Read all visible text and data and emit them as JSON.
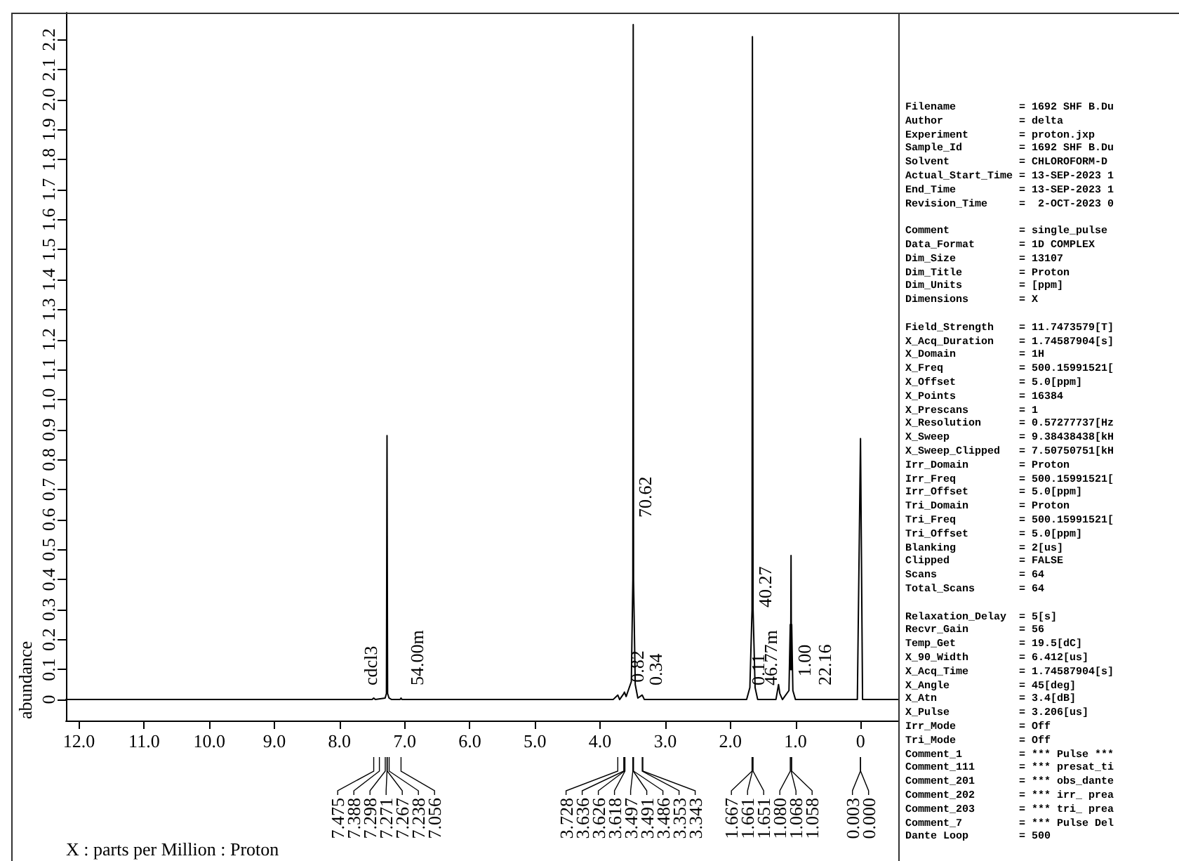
{
  "chart_data": [
    {
      "type": "line",
      "xlabel": "X : parts per Million : Proton",
      "ylabel": "abundance",
      "color": "#000000",
      "x": [
        12.2,
        7.5,
        7.475,
        7.45,
        7.3,
        7.28,
        7.271,
        7.262,
        7.24,
        7.2,
        7.07,
        7.056,
        7.04,
        3.8,
        3.728,
        3.7,
        3.636,
        3.626,
        3.6,
        3.52,
        3.497,
        3.491,
        3.486,
        3.46,
        3.42,
        3.353,
        3.343,
        3.32,
        1.75,
        1.7,
        1.667,
        1.661,
        1.651,
        1.62,
        1.58,
        1.3,
        1.26,
        1.24,
        1.2,
        1.1,
        1.08,
        1.074,
        1.068,
        1.062,
        1.058,
        1.04,
        1.0,
        0.05,
        0.0015,
        -0.03,
        -0.6
      ],
      "values": [
        0,
        0,
        0.005,
        0,
        0.005,
        0.02,
        0.88,
        0.02,
        0.005,
        0,
        0,
        0.005,
        0,
        0,
        0.015,
        0,
        0.02,
        0.025,
        0.01,
        0.06,
        0.4,
        2.25,
        0.4,
        0.05,
        0.005,
        0.015,
        0.015,
        0,
        0,
        0.04,
        0.3,
        2.21,
        0.3,
        0.04,
        0,
        0,
        0.05,
        0.02,
        0,
        0.03,
        0.25,
        0.1,
        0.48,
        0.1,
        0.25,
        0.03,
        0,
        0,
        0.87,
        0,
        0
      ],
      "xlim": [
        12.2,
        -0.6
      ],
      "ylim": [
        -0.07,
        2.29
      ],
      "xticks": [
        {
          "value": 12,
          "label": "12.0"
        },
        {
          "value": 11,
          "label": "11.0"
        },
        {
          "value": 10,
          "label": "10.0"
        },
        {
          "value": 9,
          "label": "9.0"
        },
        {
          "value": 8,
          "label": "8.0"
        },
        {
          "value": 7,
          "label": "7.0"
        },
        {
          "value": 6,
          "label": "6.0"
        },
        {
          "value": 5,
          "label": "5.0"
        },
        {
          "value": 4,
          "label": "4.0"
        },
        {
          "value": 3,
          "label": "3.0"
        },
        {
          "value": 2,
          "label": "2.0"
        },
        {
          "value": 1,
          "label": "1.0"
        },
        0
      ],
      "yticks": [
        0,
        0.1,
        0.2,
        0.3,
        0.4,
        0.5,
        0.6,
        0.7,
        0.8,
        0.9,
        {
          "value": 1,
          "label": "1.0"
        },
        1.1,
        1.2,
        1.3,
        1.4,
        1.5,
        1.6,
        1.7,
        1.8,
        1.9,
        {
          "value": 2,
          "label": "2.0"
        },
        2.1,
        2.2
      ],
      "annotations": [
        {
          "text": "cdcl3",
          "x": 7.7,
          "y": 0
        },
        {
          "text": "54.00m",
          "x": 6.99,
          "y": 0
        },
        {
          "text": "0.82",
          "x": 3.6,
          "y": 0.01
        },
        {
          "text": "70.62",
          "x": 3.4864,
          "y": 0.56
        },
        {
          "text": "0.34",
          "x": 3.32,
          "y": 0
        },
        {
          "text": "0.11",
          "x": 1.75,
          "y": 0
        },
        {
          "text": "40.27",
          "x": 1.6462,
          "y": 0.26
        },
        {
          "text": "46.77m",
          "x": 1.55,
          "y": 0
        },
        {
          "text": "1.00",
          "x": 1.04,
          "y": 0.03
        },
        {
          "text": "22.16",
          "x": 0.73,
          "y": 0
        },
        {
          "text": "7.475",
          "x": 7.475
        },
        {
          "text": "7.388",
          "x": 7.388
        },
        {
          "text": "7.298",
          "x": 7.298
        },
        {
          "text": "7.271",
          "x": 7.271
        },
        {
          "text": "7.267",
          "x": 7.267
        },
        {
          "text": "7.238",
          "x": 7.238
        },
        {
          "text": "7.056",
          "x": 7.056
        },
        {
          "text": "3.728",
          "x": 3.728
        },
        {
          "text": "3.636",
          "x": 3.636
        },
        {
          "text": "3.626",
          "x": 3.626
        },
        {
          "text": "3.618",
          "x": 3.618
        },
        {
          "text": "3.497",
          "x": 3.497
        },
        {
          "text": "3.491",
          "x": 3.491
        },
        {
          "text": "3.486",
          "x": 3.486
        },
        {
          "text": "3.353",
          "x": 3.353
        },
        {
          "text": "3.343",
          "x": 3.343
        },
        {
          "text": "1.667",
          "x": 1.667
        },
        {
          "text": "1.661",
          "x": 1.661
        },
        {
          "text": "1.651",
          "x": 1.651
        },
        {
          "text": "1.080",
          "x": 1.08
        },
        {
          "text": "1.068",
          "x": 1.068
        },
        {
          "text": "1.058",
          "x": 1.058
        },
        {
          "text": "0.003",
          "x": 0.003
        },
        {
          "text": "0.000",
          "x": 0.0
        }
      ]
    },
    {
      "type": "other",
      "annotations": [
        "Filename = 1692 SHF B.Du",
        "Author = delta",
        "Experiment = proton.jxp",
        "Sample_Id = 1692 SHF B.Du",
        "Solvent = CHLOROFORM-D",
        "Actual_Start_Time = 13-SEP-2023 1",
        "End_Time = 13-SEP-2023 1",
        "Revision_Time =  2-OCT-2023 0"
      ]
    },
    {
      "type": "other",
      "annotations": [
        "Comment = single_pulse",
        "Data_Format = 1D COMPLEX",
        "Dim_Size = 13107",
        "Dim_Title = Proton",
        "Dim_Units = [ppm]",
        "Dimensions = X"
      ]
    },
    {
      "type": "other",
      "annotations": [
        "Field_Strength = 11.7473579[T]",
        "X_Acq_Duration = 1.74587904[s]",
        "X_Domain = 1H",
        "X_Freq = 500.15991521[",
        "X_Offset = 5.0[ppm]",
        "X_Points = 16384",
        "X_Prescans = 1",
        "X_Resolution = 0.57277737[Hz",
        "X_Sweep = 9.38438438[kH",
        "X_Sweep_Clipped = 7.50750751[kH",
        "Irr_Domain = Proton",
        "Irr_Freq = 500.15991521[",
        "Irr_Offset = 5.0[ppm]",
        "Tri_Domain = Proton",
        "Tri_Freq = 500.15991521[",
        "Tri_Offset = 5.0[ppm]",
        "Blanking = 2[us]",
        "Clipped = FALSE",
        "Scans = 64",
        "Total_Scans = 64"
      ]
    },
    {
      "type": "other",
      "annotations": [
        "Relaxation_Delay = 5[s]",
        "Recvr_Gain = 56",
        "Temp_Get = 19.5[dC]",
        "X_90_Width = 6.412[us]",
        "X_Acq_Time = 1.74587904[s]",
        "X_Angle = 45[deg]",
        "X_Atn = 3.4[dB]",
        "X_Pulse = 3.206[us]",
        "Irr_Mode = Off",
        "Tri_Mode = Off",
        "Comment_1 = *** Pulse ***",
        "Comment_111 = *** presat_ti",
        "Comment_201 = *** obs_dante",
        "Comment_202 = *** irr_ prea",
        "Comment_203 = *** tri_ prea",
        "Comment_7 = *** Pulse Del",
        "Dante Loop = 500"
      ]
    }
  ]
}
